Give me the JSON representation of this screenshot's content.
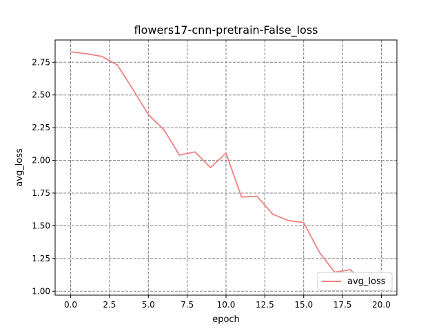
{
  "chart_data": {
    "type": "line",
    "title": "flowers17-cnn-pretrain-False_loss",
    "xlabel": "epoch",
    "ylabel": "avg_loss",
    "xlim": [
      -1,
      21
    ],
    "ylim": [
      0.97,
      2.92
    ],
    "xticks": [
      0.0,
      2.5,
      5.0,
      7.5,
      10.0,
      12.5,
      15.0,
      17.5,
      20.0
    ],
    "xtick_labels": [
      "0.0",
      "2.5",
      "5.0",
      "7.5",
      "10.0",
      "12.5",
      "15.0",
      "17.5",
      "20.0"
    ],
    "yticks": [
      1.0,
      1.25,
      1.5,
      1.75,
      2.0,
      2.25,
      2.5,
      2.75
    ],
    "ytick_labels": [
      "1.00",
      "1.25",
      "1.50",
      "1.75",
      "2.00",
      "2.25",
      "2.50",
      "2.75"
    ],
    "grid": true,
    "legend_position": "lower-right",
    "series": [
      {
        "name": "avg_loss",
        "color": "#f08080",
        "x": [
          0,
          1,
          2,
          3,
          4,
          5,
          6,
          7,
          8,
          9,
          10,
          11,
          12,
          13,
          14,
          15,
          16,
          17,
          18,
          19
        ],
        "values": [
          2.83,
          2.815,
          2.795,
          2.73,
          2.545,
          2.35,
          2.235,
          2.04,
          2.065,
          1.945,
          2.055,
          1.72,
          1.725,
          1.59,
          1.54,
          1.525,
          1.3,
          1.145,
          1.165,
          1.04
        ]
      }
    ]
  }
}
